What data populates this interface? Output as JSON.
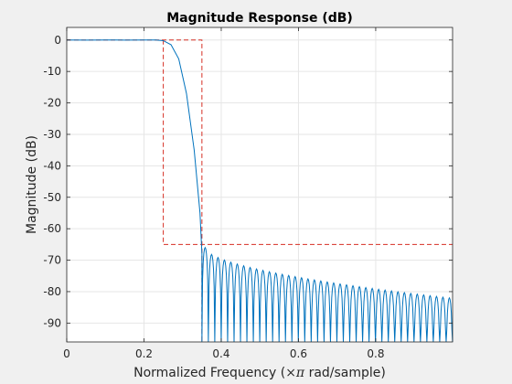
{
  "chart_data": {
    "type": "line",
    "title": "Magnitude Response (dB)",
    "xlabel_prefix": "Normalized Frequency  (",
    "xlabel_symbol": "×π",
    "xlabel_suffix": " rad/sample)",
    "ylabel": "Magnitude (dB)",
    "xlim": [
      0,
      0.999
    ],
    "ylim": [
      -96,
      4
    ],
    "grid": true,
    "x_ticks": [
      0,
      0.2,
      0.4,
      0.6,
      0.8
    ],
    "x_tick_labels": [
      "0",
      "0.2",
      "0.4",
      "0.6",
      "0.8"
    ],
    "y_ticks": [
      0,
      -10,
      -20,
      -30,
      -40,
      -50,
      -60,
      -70,
      -80,
      -90
    ],
    "y_tick_labels": [
      "0",
      "-10",
      "-20",
      "-30",
      "-40",
      "-50",
      "-60",
      "-70",
      "-80",
      "-90"
    ],
    "colors": {
      "response": "#0072bd",
      "constraint": "#d62f24",
      "axes_bg": "#ffffff",
      "figure_bg": "#f0f0f0",
      "grid": "#e6e6e6",
      "axis": "#262626"
    },
    "response": {
      "passband_x": [
        0,
        0.05,
        0.1,
        0.15,
        0.2,
        0.23,
        0.25,
        0.27,
        0.29,
        0.31,
        0.33,
        0.345,
        0.35
      ],
      "passband_db": [
        0,
        -0.02,
        0.02,
        -0.02,
        0.01,
        0,
        -0.2,
        -1.5,
        -6,
        -17,
        -35,
        -55,
        -68
      ],
      "stopband_start": 0.35,
      "stopband_end": 0.999,
      "ripple_count": 39,
      "lobe_peak_db_start": -66,
      "lobe_peak_db_end": -82,
      "null_depth_db": -96
    },
    "mask": {
      "passband_edge": 0.35,
      "passband_level_db": 0,
      "transition_start": 0.25,
      "stopband_level_db": -65
    }
  }
}
